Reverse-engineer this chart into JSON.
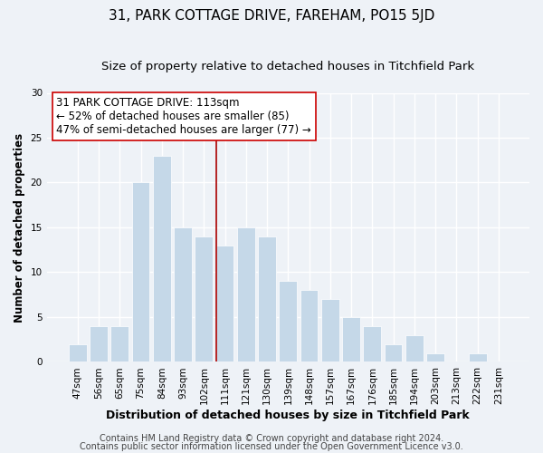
{
  "title": "31, PARK COTTAGE DRIVE, FAREHAM, PO15 5JD",
  "subtitle": "Size of property relative to detached houses in Titchfield Park",
  "xlabel": "Distribution of detached houses by size in Titchfield Park",
  "ylabel": "Number of detached properties",
  "categories": [
    "47sqm",
    "56sqm",
    "65sqm",
    "75sqm",
    "84sqm",
    "93sqm",
    "102sqm",
    "111sqm",
    "121sqm",
    "130sqm",
    "139sqm",
    "148sqm",
    "157sqm",
    "167sqm",
    "176sqm",
    "185sqm",
    "194sqm",
    "203sqm",
    "213sqm",
    "222sqm",
    "231sqm"
  ],
  "values": [
    2,
    4,
    4,
    20,
    23,
    15,
    14,
    13,
    15,
    14,
    9,
    8,
    7,
    5,
    4,
    2,
    3,
    1,
    0,
    1,
    0
  ],
  "bar_color": "#c5d8e8",
  "bar_edge_color": "#ffffff",
  "vline_index": 7,
  "vline_color": "#aa0000",
  "ylim": [
    0,
    30
  ],
  "yticks": [
    0,
    5,
    10,
    15,
    20,
    25,
    30
  ],
  "annotation_title": "31 PARK COTTAGE DRIVE: 113sqm",
  "annotation_line1": "← 52% of detached houses are smaller (85)",
  "annotation_line2": "47% of semi-detached houses are larger (77) →",
  "annotation_box_color": "#ffffff",
  "annotation_border_color": "#cc0000",
  "footer_line1": "Contains HM Land Registry data © Crown copyright and database right 2024.",
  "footer_line2": "Contains public sector information licensed under the Open Government Licence v3.0.",
  "background_color": "#eef2f7",
  "grid_color": "#ffffff",
  "title_fontsize": 11,
  "subtitle_fontsize": 9.5,
  "xlabel_fontsize": 9,
  "ylabel_fontsize": 8.5,
  "tick_fontsize": 7.5,
  "footer_fontsize": 7,
  "annotation_fontsize": 8.5
}
